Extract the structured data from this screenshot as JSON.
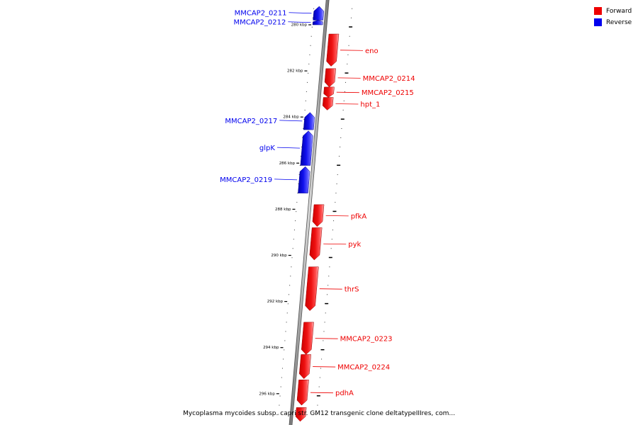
{
  "legend": {
    "forward_label": "Forward",
    "reverse_label": "Reverse",
    "forward_color": "#ee0000",
    "reverse_color": "#0000ee"
  },
  "caption": "Mycoplasma mycoides subsp. capri str. GM12 transgenic clone deltatypeIIIres, com...",
  "ticks": [
    {
      "label": "280 kbp",
      "kbp": 280
    },
    {
      "label": "282 kbp",
      "kbp": 282
    },
    {
      "label": "284 kbp",
      "kbp": 284
    },
    {
      "label": "286 kbp",
      "kbp": 286
    },
    {
      "label": "288 kbp",
      "kbp": 288
    },
    {
      "label": "290 kbp",
      "kbp": 290
    },
    {
      "label": "292 kbp",
      "kbp": 292
    },
    {
      "label": "294 kbp",
      "kbp": 294
    },
    {
      "label": "296 kbp",
      "kbp": 296
    }
  ],
  "genes": [
    {
      "name": "MMCAP2_0211",
      "strand": "reverse",
      "start_kbp": 279.2,
      "end_kbp": 279.8
    },
    {
      "name": "MMCAP2_0212",
      "strand": "reverse",
      "start_kbp": 279.8,
      "end_kbp": 280.0
    },
    {
      "name": "eno",
      "strand": "forward",
      "start_kbp": 280.4,
      "end_kbp": 281.8
    },
    {
      "name": "MMCAP2_0214",
      "strand": "forward",
      "start_kbp": 281.9,
      "end_kbp": 282.7
    },
    {
      "name": "MMCAP2_0215",
      "strand": "forward",
      "start_kbp": 282.7,
      "end_kbp": 283.15
    },
    {
      "name": "hpt_1",
      "strand": "forward",
      "start_kbp": 283.15,
      "end_kbp": 283.7
    },
    {
      "name": "MMCAP2_0217",
      "strand": "reverse",
      "start_kbp": 283.8,
      "end_kbp": 284.55
    },
    {
      "name": "glpK",
      "strand": "reverse",
      "start_kbp": 284.6,
      "end_kbp": 286.1
    },
    {
      "name": "MMCAP2_0219",
      "strand": "reverse",
      "start_kbp": 286.15,
      "end_kbp": 287.3
    },
    {
      "name": "pfkA",
      "strand": "forward",
      "start_kbp": 287.8,
      "end_kbp": 288.75
    },
    {
      "name": "pyk",
      "strand": "forward",
      "start_kbp": 288.8,
      "end_kbp": 290.2
    },
    {
      "name": "thrS",
      "strand": "forward",
      "start_kbp": 290.5,
      "end_kbp": 292.4
    },
    {
      "name": "MMCAP2_0223",
      "strand": "forward",
      "start_kbp": 292.9,
      "end_kbp": 294.3
    },
    {
      "name": "MMCAP2_0224",
      "strand": "forward",
      "start_kbp": 294.3,
      "end_kbp": 295.35
    },
    {
      "name": "pdhA",
      "strand": "forward",
      "start_kbp": 295.4,
      "end_kbp": 296.5
    },
    {
      "name": "",
      "strand": "forward",
      "start_kbp": 296.6,
      "end_kbp": 297.2
    }
  ]
}
